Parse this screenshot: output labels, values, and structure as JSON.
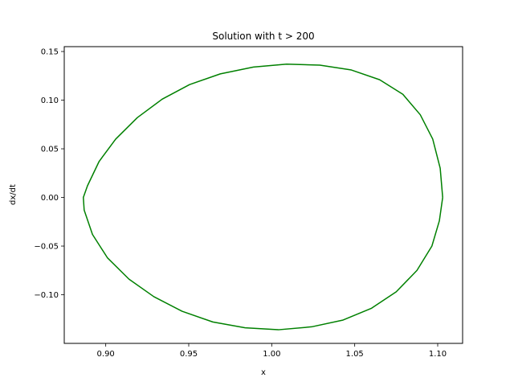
{
  "chart_data": {
    "type": "line",
    "title": "Solution with t > 200",
    "xlabel": "x",
    "ylabel": "dx/dt",
    "xlim": [
      0.875,
      1.115
    ],
    "ylim": [
      -0.15,
      0.155
    ],
    "xticks": [
      0.9,
      0.95,
      1.0,
      1.05,
      1.1
    ],
    "xtick_labels": [
      "0.90",
      "0.95",
      "1.00",
      "1.05",
      "1.10"
    ],
    "yticks": [
      -0.1,
      -0.05,
      0.0,
      0.05,
      0.1,
      0.15
    ],
    "ytick_labels": [
      "−0.10",
      "−0.05",
      "0.00",
      "0.05",
      "0.10",
      "0.15"
    ],
    "grid": false,
    "series": [
      {
        "color": "#008000",
        "x": [
          1.103,
          1.1015,
          1.097,
          1.0895,
          1.079,
          1.065,
          1.048,
          1.029,
          1.009,
          0.989,
          0.969,
          0.9505,
          0.934,
          0.919,
          0.906,
          0.896,
          0.889,
          0.8865,
          0.887,
          0.892,
          0.901,
          0.914,
          0.929,
          0.946,
          0.9645,
          0.984,
          1.004,
          1.024,
          1.043,
          1.06,
          1.075,
          1.0875,
          1.0965,
          1.101,
          1.103
        ],
        "y": [
          0.0,
          0.03,
          0.06,
          0.085,
          0.106,
          0.121,
          0.131,
          0.136,
          0.137,
          0.134,
          0.127,
          0.116,
          0.101,
          0.082,
          0.06,
          0.037,
          0.012,
          0.0,
          -0.013,
          -0.038,
          -0.062,
          -0.084,
          -0.102,
          -0.117,
          -0.128,
          -0.134,
          -0.136,
          -0.133,
          -0.126,
          -0.114,
          -0.097,
          -0.075,
          -0.05,
          -0.024,
          0.0
        ]
      }
    ]
  }
}
